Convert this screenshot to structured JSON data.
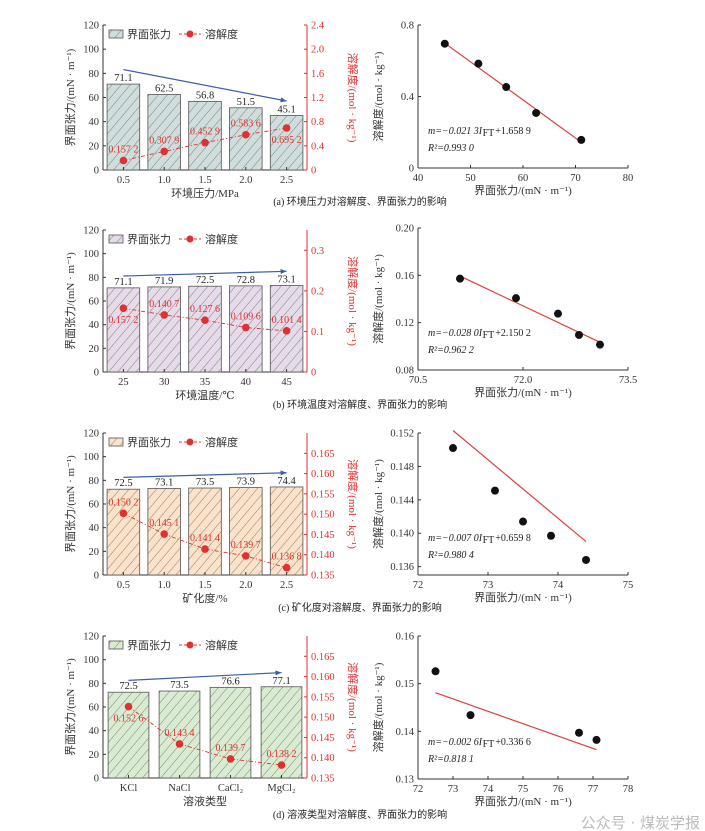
{
  "colors": {
    "bar_edge": "#555555",
    "solubility": "#e03030",
    "arrow": "#3b5ea8",
    "fit_line": "#d94040",
    "point": "#111111"
  },
  "watermark": "公众号 · 煤炭学报",
  "chart_data": [
    {
      "type": "bar",
      "panel": "a",
      "caption": "(a) 环境压力对溶解度、界面张力的影响",
      "xlabel": "环境压力/MPa",
      "ylabel": "界面张力/(mN · m⁻¹)",
      "y2label": "溶解度/(mol · kg⁻¹)",
      "legend": [
        "界面张力",
        "溶解度"
      ],
      "legend_position": "top-left",
      "categories": [
        "0.5",
        "1.0",
        "1.5",
        "2.0",
        "2.5"
      ],
      "series": [
        {
          "name": "界面张力",
          "axis": "left",
          "values": [
            71.1,
            62.5,
            56.8,
            51.5,
            45.1
          ],
          "labels": [
            "71.1",
            "62.5",
            "56.8",
            "51.5",
            "45.1"
          ]
        },
        {
          "name": "溶解度",
          "axis": "right",
          "values": [
            0.1572,
            0.3079,
            0.4529,
            0.5836,
            0.6952
          ],
          "labels": [
            "0.157 2",
            "0.307 9",
            "0.452 9",
            "0.583 6",
            "0.695 2"
          ]
        }
      ],
      "ylim": [
        0,
        120
      ],
      "yticks": [
        "0",
        "20",
        "40",
        "60",
        "80",
        "100",
        "120"
      ],
      "y2lim": [
        0,
        2.4
      ],
      "y2ticks": [
        "0",
        "0.4",
        "0.8",
        "1.2",
        "1.6",
        "2.0",
        "2.4"
      ],
      "bar_fill": "#cfdedd",
      "trend": "down"
    },
    {
      "type": "scatter",
      "panel": "a",
      "xlabel": "界面张力/(mN · m⁻¹)",
      "ylabel": "溶解度/(mol · kg⁻¹)",
      "x": [
        71.1,
        62.5,
        56.8,
        51.5,
        45.1
      ],
      "y": [
        0.1572,
        0.3079,
        0.4529,
        0.5836,
        0.6952
      ],
      "xlim": [
        40,
        80
      ],
      "xticks": [
        "40",
        "50",
        "60",
        "70",
        "80"
      ],
      "ylim": [
        0,
        0.8
      ],
      "yticks": [
        "0",
        "0.4",
        "0.8"
      ],
      "fit": {
        "slope": -0.0213,
        "intercept": 1.6589,
        "eq_prefix": "m=−0.021 3I",
        "eq_sub": "FT",
        "eq_suffix": "+1.658 9",
        "r2": "R²=0.993 0"
      }
    },
    {
      "type": "bar",
      "panel": "b",
      "caption": "(b) 环境温度对溶解度、界面张力的影响",
      "xlabel": "环境温度/℃",
      "ylabel": "界面张力/(mN · m⁻¹)",
      "y2label": "溶解度/(mol · kg⁻¹)",
      "legend": [
        "界面张力",
        "溶解度"
      ],
      "legend_position": "top-left",
      "categories": [
        "25",
        "30",
        "35",
        "40",
        "45"
      ],
      "series": [
        {
          "name": "界面张力",
          "axis": "left",
          "values": [
            71.1,
            71.9,
            72.5,
            72.8,
            73.1
          ],
          "labels": [
            "71.1",
            "71.9",
            "72.5",
            "72.8",
            "73.1"
          ]
        },
        {
          "name": "溶解度",
          "axis": "right",
          "values": [
            0.1572,
            0.1407,
            0.1276,
            0.1096,
            0.1014
          ],
          "labels": [
            "0.157 2",
            "0.140 7",
            "0.127 6",
            "0.109 6",
            "0.101 4"
          ]
        }
      ],
      "ylim": [
        0,
        120
      ],
      "yticks": [
        "0",
        "20",
        "40",
        "60",
        "80",
        "100",
        "120"
      ],
      "y2lim": [
        0,
        0.35
      ],
      "y2ticks": [
        "0",
        "0.1",
        "0.2",
        "0.3"
      ],
      "bar_fill": "#e6dbe9",
      "trend": "up"
    },
    {
      "type": "scatter",
      "panel": "b",
      "xlabel": "界面张力/(mN · m⁻¹)",
      "ylabel": "溶解度/(mol · kg⁻¹)",
      "x": [
        71.1,
        71.9,
        72.5,
        72.8,
        73.1
      ],
      "y": [
        0.1572,
        0.1407,
        0.1276,
        0.1096,
        0.1014
      ],
      "xlim": [
        70.5,
        73.5
      ],
      "xticks": [
        "70.5",
        "72.0",
        "73.5"
      ],
      "ylim": [
        0.08,
        0.2
      ],
      "yticks": [
        "0.08",
        "0.12",
        "0.16",
        "0.20"
      ],
      "fit": {
        "slope": -0.028,
        "intercept": 2.1502,
        "eq_prefix": "m=−0.028 0I",
        "eq_sub": "FT",
        "eq_suffix": "+2.150 2",
        "r2": "R²=0.962 2"
      }
    },
    {
      "type": "bar",
      "panel": "c",
      "caption": "(c) 矿化度对溶解度、界面张力的影响",
      "xlabel": "矿化度/%",
      "ylabel": "界面张力/(mN · m⁻¹)",
      "y2label": "溶解度/(mol · kg⁻¹)",
      "legend": [
        "界面张力",
        "溶解度"
      ],
      "legend_position": "top-left",
      "categories": [
        "0.5",
        "1.0",
        "1.5",
        "2.0",
        "2.5"
      ],
      "series": [
        {
          "name": "界面张力",
          "axis": "left",
          "values": [
            72.5,
            73.1,
            73.5,
            73.9,
            74.4
          ],
          "labels": [
            "72.5",
            "73.1",
            "73.5",
            "73.9",
            "74.4"
          ]
        },
        {
          "name": "溶解度",
          "axis": "right",
          "values": [
            0.1502,
            0.1451,
            0.1414,
            0.1397,
            0.1368
          ],
          "labels": [
            "0.150 2",
            "0.145 1",
            "0.141 4",
            "0.139 7",
            "0.136 8"
          ]
        }
      ],
      "ylim": [
        0,
        120
      ],
      "yticks": [
        "0",
        "20",
        "40",
        "60",
        "80",
        "100",
        "120"
      ],
      "y2lim": [
        0.135,
        0.17
      ],
      "y2ticks": [
        "0.135",
        "0.140",
        "0.145",
        "0.150",
        "0.155",
        "0.160",
        "0.165"
      ],
      "bar_fill": "#fbe2c8",
      "trend": "up"
    },
    {
      "type": "scatter",
      "panel": "c",
      "xlabel": "界面张力/(mN · m⁻¹)",
      "ylabel": "溶解度/(mol · kg⁻¹)",
      "x": [
        72.5,
        73.1,
        73.5,
        73.9,
        74.4
      ],
      "y": [
        0.1502,
        0.1451,
        0.1414,
        0.1397,
        0.1368
      ],
      "xlim": [
        72,
        75
      ],
      "xticks": [
        "72",
        "73",
        "74",
        "75"
      ],
      "ylim": [
        0.135,
        0.152
      ],
      "yticks": [
        "0.136",
        "0.140",
        "0.144",
        "0.148",
        "0.152"
      ],
      "fit": {
        "slope": -0.007,
        "intercept": 0.6598,
        "eq_prefix": "m=−0.007 0I",
        "eq_sub": "FT",
        "eq_suffix": "+0.659 8",
        "r2": "R²=0.980 4"
      }
    },
    {
      "type": "bar",
      "panel": "d",
      "caption": "(d) 溶液类型对溶解度、界面张力的影响",
      "xlabel": "溶液类型",
      "ylabel": "界面张力/(mN · m⁻¹)",
      "y2label": "溶解度/(mol · kg⁻¹)",
      "legend": [
        "界面张力",
        "溶解度"
      ],
      "legend_position": "top-left",
      "categories": [
        "KCl",
        "NaCl",
        "CaCl₂",
        "MgCl₂"
      ],
      "series": [
        {
          "name": "界面张力",
          "axis": "left",
          "values": [
            72.5,
            73.5,
            76.6,
            77.1
          ],
          "labels": [
            "72.5",
            "73.5",
            "76.6",
            "77.1"
          ]
        },
        {
          "name": "溶解度",
          "axis": "right",
          "values": [
            0.1526,
            0.1434,
            0.1397,
            0.1382
          ],
          "labels": [
            "0.152 6",
            "0.143 4",
            "0.139 7",
            "0.138 2"
          ]
        }
      ],
      "ylim": [
        0,
        120
      ],
      "yticks": [
        "0",
        "20",
        "40",
        "60",
        "80",
        "100",
        "120"
      ],
      "y2lim": [
        0.135,
        0.17
      ],
      "y2ticks": [
        "0.135",
        "0.140",
        "0.145",
        "0.150",
        "0.155",
        "0.160",
        "0.165"
      ],
      "bar_fill": "#d9ecd2",
      "trend": "up"
    },
    {
      "type": "scatter",
      "panel": "d",
      "xlabel": "界面张力/(mN · m⁻¹)",
      "ylabel": "溶解度/(mol · kg⁻¹)",
      "x": [
        72.5,
        73.5,
        76.6,
        77.1
      ],
      "y": [
        0.1526,
        0.1434,
        0.1397,
        0.1382
      ],
      "xlim": [
        72,
        78
      ],
      "xticks": [
        "72",
        "73",
        "74",
        "75",
        "76",
        "77",
        "78"
      ],
      "ylim": [
        0.13,
        0.16
      ],
      "yticks": [
        "0.13",
        "0.14",
        "0.15",
        "0.16"
      ],
      "fit": {
        "slope": -0.0026,
        "intercept": 0.3366,
        "eq_prefix": "m=−0.002 6I",
        "eq_sub": "FT",
        "eq_suffix": "+0.336 6",
        "r2": "R²=0.818 1"
      }
    }
  ]
}
